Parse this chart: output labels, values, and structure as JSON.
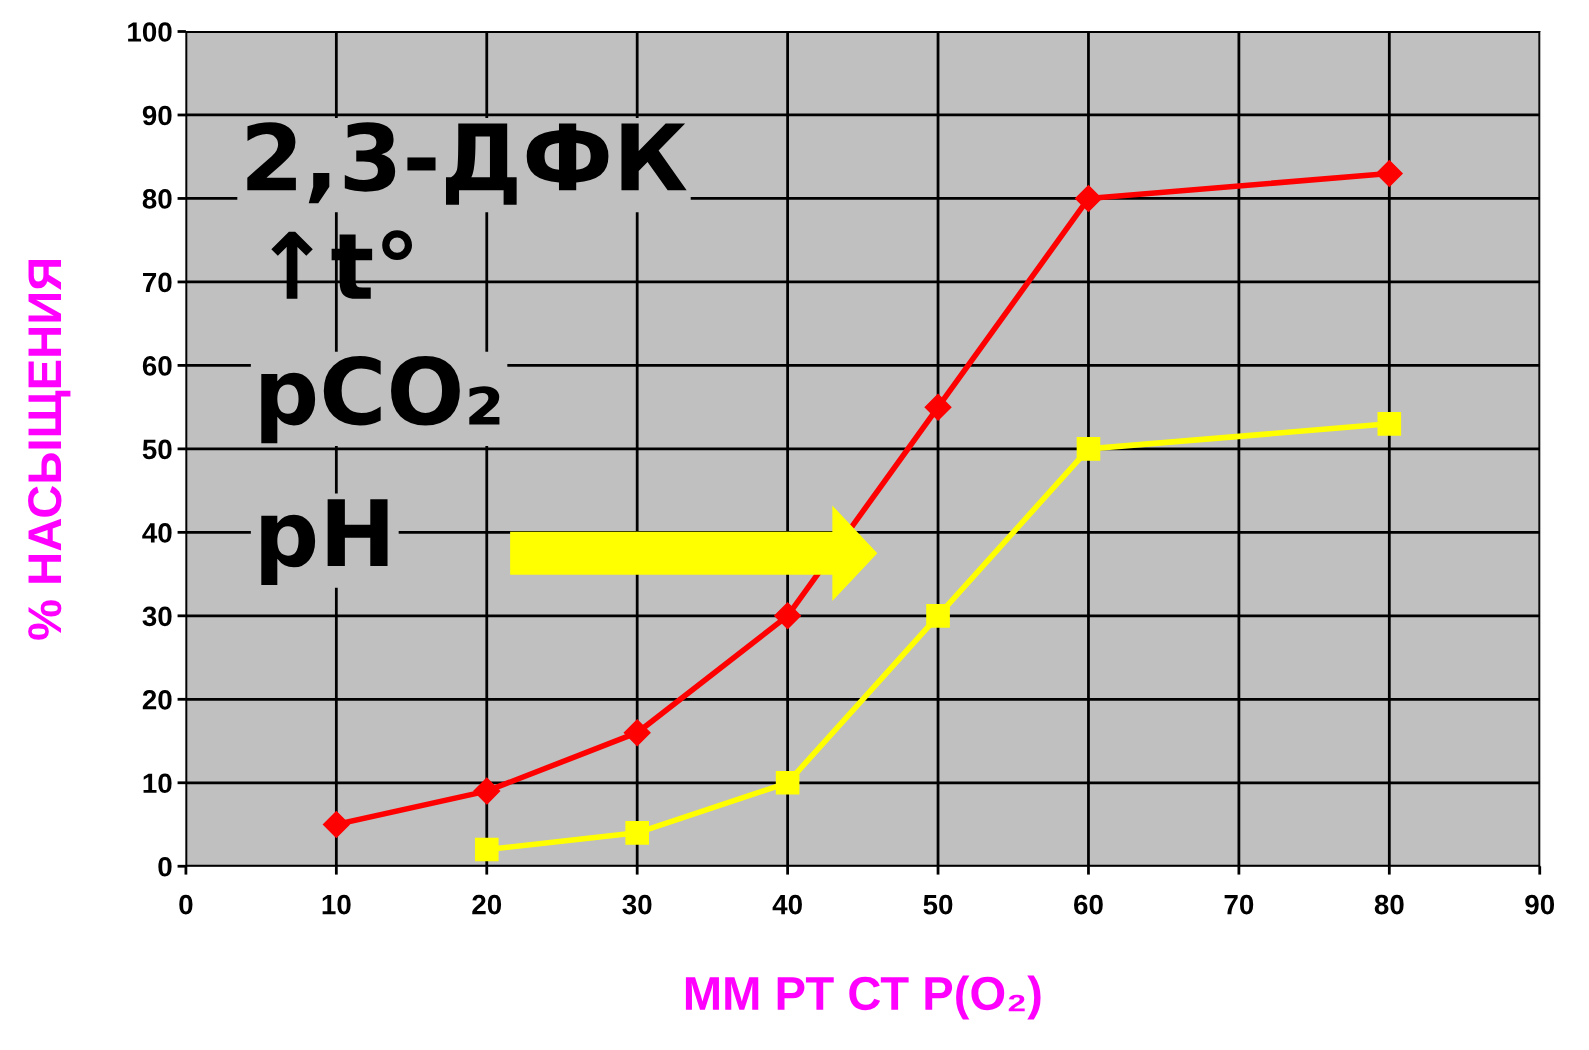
{
  "chart_data": {
    "type": "line",
    "xlabel": "ММ РТ СТ Р(O₂)",
    "ylabel": "% НАСЫЩЕНИЯ",
    "series": [
      {
        "color": "#ff0000",
        "marker": "diamond",
        "x": [
          10,
          20,
          30,
          40,
          50,
          60,
          80
        ],
        "values": [
          5,
          9,
          16,
          30,
          55,
          80,
          83
        ]
      },
      {
        "color": "#ffff00",
        "marker": "square",
        "x": [
          20,
          30,
          40,
          50,
          60,
          80
        ],
        "values": [
          2,
          4,
          10,
          30,
          50,
          53
        ]
      }
    ],
    "xlim": [
      0,
      90
    ],
    "xticks": [
      0,
      10,
      20,
      30,
      40,
      50,
      60,
      70,
      80,
      90
    ],
    "ylim": [
      0,
      100
    ],
    "yticks": [
      0,
      10,
      20,
      30,
      40,
      50,
      60,
      70,
      80,
      90,
      100
    ],
    "grid": true,
    "legend": false,
    "annotations": [
      "2,3-ДФК",
      "↑t°",
      "pCO₂",
      "pH"
    ]
  }
}
